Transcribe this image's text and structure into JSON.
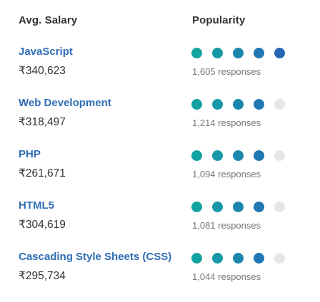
{
  "header": {
    "salary_label": "Avg. Salary",
    "popularity_label": "Popularity"
  },
  "colors": {
    "link": "#2f6db5",
    "dot_scale": [
      "#13a3a0",
      "#1798a6",
      "#1b87ad",
      "#1f78b3",
      "#2566b7"
    ],
    "dot_empty": "#e6e6e6"
  },
  "rows": [
    {
      "name": "JavaScript",
      "salary": "₹340,623",
      "responses": "1,605 responses",
      "popularity_filled": 5,
      "popularity_max": 5
    },
    {
      "name": "Web Development",
      "salary": "₹318,497",
      "responses": "1,214 responses",
      "popularity_filled": 4,
      "popularity_max": 5
    },
    {
      "name": "PHP",
      "salary": "₹261,671",
      "responses": "1,094 responses",
      "popularity_filled": 4,
      "popularity_max": 5
    },
    {
      "name": "HTML5",
      "salary": "₹304,619",
      "responses": "1,081 responses",
      "popularity_filled": 4,
      "popularity_max": 5
    },
    {
      "name": "Cascading Style Sheets (CSS)",
      "salary": "₹295,734",
      "responses": "1,044 responses",
      "popularity_filled": 4,
      "popularity_max": 5
    }
  ]
}
